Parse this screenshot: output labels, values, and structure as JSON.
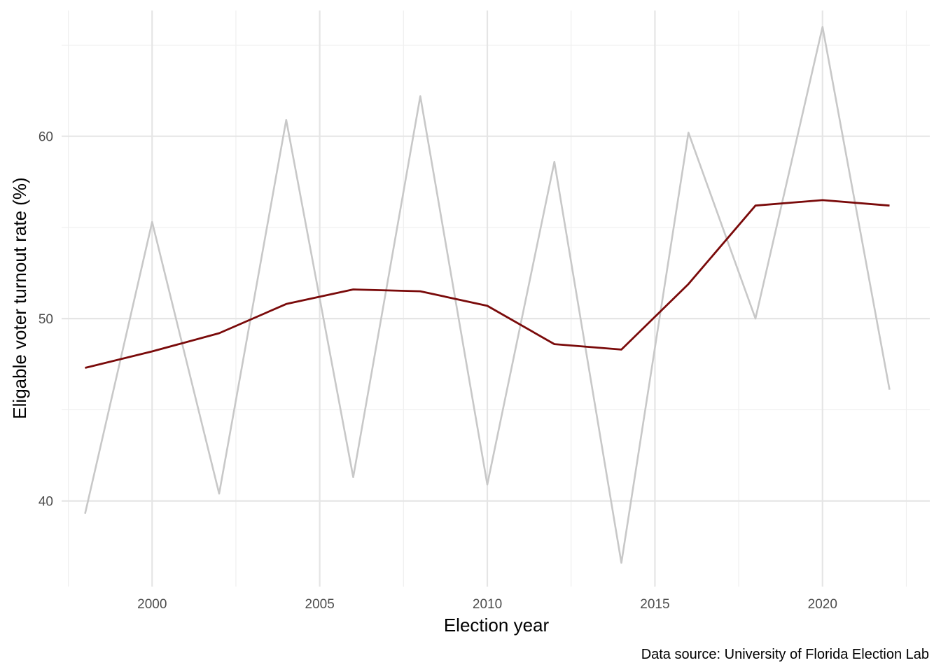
{
  "chart_data": {
    "type": "line",
    "title": "",
    "xlabel": "Election year",
    "ylabel": "Eligable voter turnout rate (%)",
    "caption": "Data source: University of Florida Election Lab",
    "x": [
      1998,
      2000,
      2002,
      2004,
      2006,
      2008,
      2010,
      2012,
      2014,
      2016,
      2018,
      2020,
      2022
    ],
    "xlim": [
      1997.3,
      2023.2
    ],
    "ylim": [
      35.3,
      66.9
    ],
    "x_ticks": [
      2000,
      2005,
      2010,
      2015,
      2020
    ],
    "x_tick_labels": [
      "2000",
      "2005",
      "2010",
      "2015",
      "2020"
    ],
    "x_minor_ticks": [
      1997.5,
      2002.5,
      2007.5,
      2012.5,
      2017.5,
      2022.5
    ],
    "y_ticks": [
      40,
      50,
      60
    ],
    "y_tick_labels": [
      "40",
      "50",
      "60"
    ],
    "y_minor_ticks": [
      45,
      55,
      65
    ],
    "grid": true,
    "legend": "none",
    "series": [
      {
        "color": "#c8c8c8",
        "values": [
          39.3,
          55.3,
          40.4,
          60.9,
          41.3,
          62.2,
          40.9,
          58.6,
          36.6,
          60.2,
          50.0,
          66.0,
          46.1
        ]
      },
      {
        "color": "#7a0a0a",
        "values": [
          47.3,
          48.2,
          49.2,
          50.8,
          51.6,
          51.5,
          50.7,
          48.6,
          48.3,
          51.9,
          56.2,
          56.5,
          56.2
        ]
      }
    ]
  }
}
